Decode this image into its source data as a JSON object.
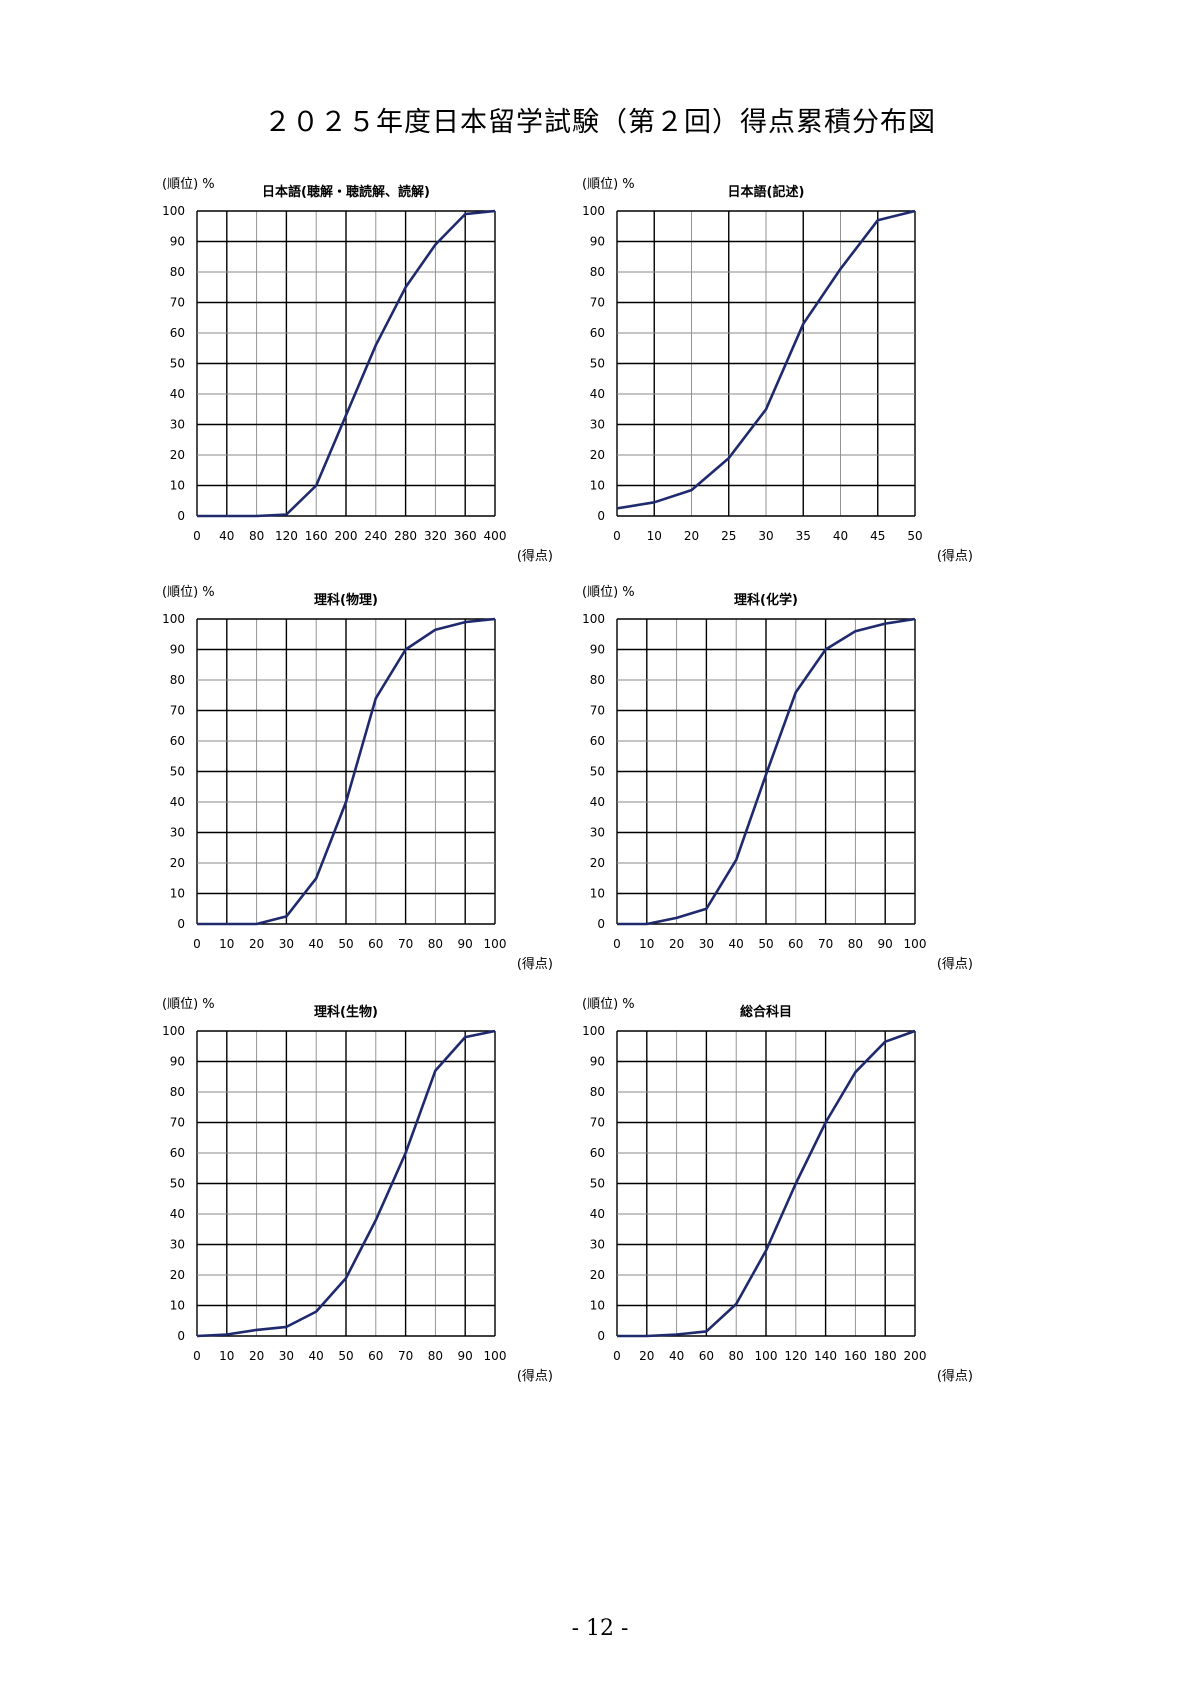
{
  "page": {
    "title": "２０２５年度日本留学試験（第２回）得点累積分布図",
    "page_number": "- 12 -"
  },
  "chart_data": [
    {
      "type": "line",
      "title": "日本語(聴解・聴読解、読解)",
      "ylabel": "(順位) %",
      "xlabel": "(得点)",
      "x_ticks": [
        "0",
        "40",
        "80",
        "120",
        "160",
        "200",
        "240",
        "280",
        "320",
        "360",
        "400"
      ],
      "y_ticks": [
        "0",
        "10",
        "20",
        "30",
        "40",
        "50",
        "60",
        "70",
        "80",
        "90",
        "100"
      ],
      "xlim": [
        0,
        400
      ],
      "ylim": [
        0,
        100
      ],
      "grid": true,
      "series": [
        {
          "x": [
            0,
            40,
            80,
            120,
            160,
            200,
            240,
            280,
            320,
            360,
            400
          ],
          "y": [
            0,
            0,
            0,
            0.5,
            10,
            33,
            56,
            75,
            89,
            99,
            100
          ]
        }
      ],
      "line_color": "#1f2a6e"
    },
    {
      "type": "line",
      "title": "日本語(記述)",
      "ylabel": "(順位) %",
      "xlabel": "(得点)",
      "x_ticks": [
        "0",
        "10",
        "20",
        "25",
        "30",
        "35",
        "40",
        "45",
        "50"
      ],
      "y_ticks": [
        "0",
        "10",
        "20",
        "30",
        "40",
        "50",
        "60",
        "70",
        "80",
        "90",
        "100"
      ],
      "xlim": [
        0,
        50
      ],
      "ylim": [
        0,
        100
      ],
      "grid": true,
      "series": [
        {
          "x": [
            0,
            10,
            20,
            25,
            30,
            35,
            40,
            45,
            50
          ],
          "y": [
            2.5,
            4.5,
            8.5,
            19,
            35,
            63,
            81,
            97,
            100
          ]
        }
      ],
      "line_color": "#1f2a6e"
    },
    {
      "type": "line",
      "title": "理科(物理)",
      "ylabel": "(順位) %",
      "xlabel": "(得点)",
      "x_ticks": [
        "0",
        "10",
        "20",
        "30",
        "40",
        "50",
        "60",
        "70",
        "80",
        "90",
        "100"
      ],
      "y_ticks": [
        "0",
        "10",
        "20",
        "30",
        "40",
        "50",
        "60",
        "70",
        "80",
        "90",
        "100"
      ],
      "xlim": [
        0,
        100
      ],
      "ylim": [
        0,
        100
      ],
      "grid": true,
      "series": [
        {
          "x": [
            0,
            10,
            20,
            30,
            40,
            50,
            60,
            70,
            80,
            90,
            100
          ],
          "y": [
            0,
            0,
            0,
            2.5,
            15,
            40,
            74,
            90,
            96.5,
            99,
            100
          ]
        }
      ],
      "line_color": "#1f2a6e"
    },
    {
      "type": "line",
      "title": "理科(化学)",
      "ylabel": "(順位) %",
      "xlabel": "(得点)",
      "x_ticks": [
        "0",
        "10",
        "20",
        "30",
        "40",
        "50",
        "60",
        "70",
        "80",
        "90",
        "100"
      ],
      "y_ticks": [
        "0",
        "10",
        "20",
        "30",
        "40",
        "50",
        "60",
        "70",
        "80",
        "90",
        "100"
      ],
      "xlim": [
        0,
        100
      ],
      "ylim": [
        0,
        100
      ],
      "grid": true,
      "series": [
        {
          "x": [
            0,
            10,
            20,
            30,
            40,
            50,
            60,
            70,
            80,
            90,
            100
          ],
          "y": [
            0,
            0,
            2,
            5,
            21,
            49,
            76,
            90,
            96,
            98.5,
            100
          ]
        }
      ],
      "line_color": "#1f2a6e"
    },
    {
      "type": "line",
      "title": "理科(生物)",
      "ylabel": "(順位) %",
      "xlabel": "(得点)",
      "x_ticks": [
        "0",
        "10",
        "20",
        "30",
        "40",
        "50",
        "60",
        "70",
        "80",
        "90",
        "100"
      ],
      "y_ticks": [
        "0",
        "10",
        "20",
        "30",
        "40",
        "50",
        "60",
        "70",
        "80",
        "90",
        "100"
      ],
      "xlim": [
        0,
        100
      ],
      "ylim": [
        0,
        100
      ],
      "grid": true,
      "series": [
        {
          "x": [
            0,
            10,
            20,
            30,
            40,
            50,
            60,
            70,
            80,
            90,
            100
          ],
          "y": [
            0,
            0.5,
            2,
            3,
            8,
            19,
            38,
            60,
            87,
            98,
            100
          ]
        }
      ],
      "line_color": "#1f2a6e"
    },
    {
      "type": "line",
      "title": "総合科目",
      "ylabel": "(順位) %",
      "xlabel": "(得点)",
      "x_ticks": [
        "0",
        "20",
        "40",
        "60",
        "80",
        "100",
        "120",
        "140",
        "160",
        "180",
        "200"
      ],
      "y_ticks": [
        "0",
        "10",
        "20",
        "30",
        "40",
        "50",
        "60",
        "70",
        "80",
        "90",
        "100"
      ],
      "xlim": [
        0,
        200
      ],
      "ylim": [
        0,
        100
      ],
      "grid": true,
      "series": [
        {
          "x": [
            0,
            20,
            40,
            60,
            80,
            100,
            120,
            140,
            160,
            180,
            200
          ],
          "y": [
            0,
            0,
            0.5,
            1.5,
            10.5,
            28,
            50,
            70,
            86.5,
            96.5,
            100
          ]
        }
      ],
      "line_color": "#1f2a6e"
    }
  ]
}
